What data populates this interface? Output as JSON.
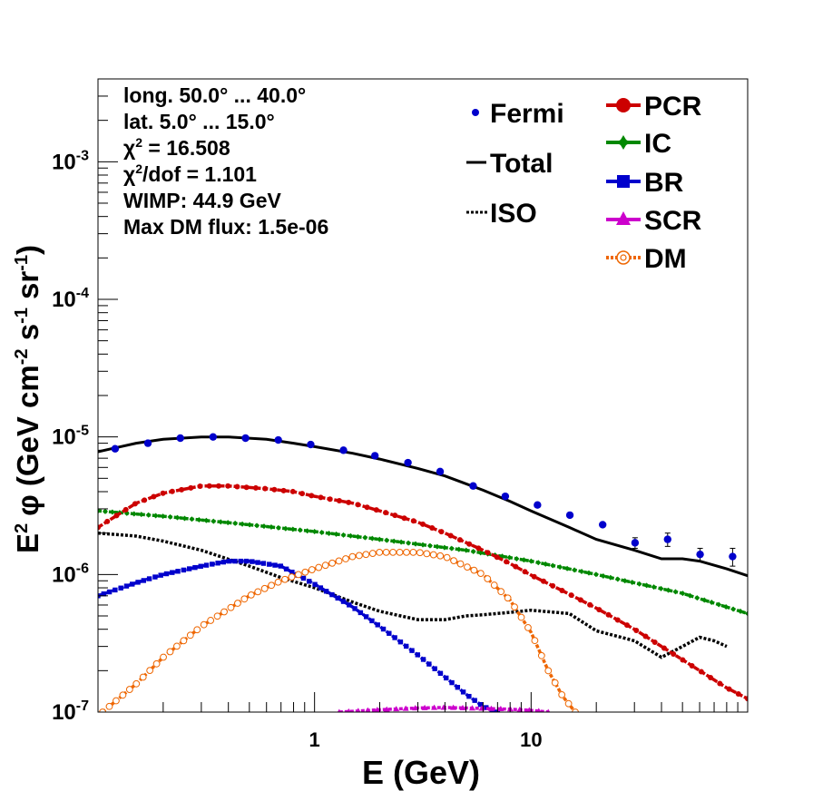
{
  "chart_data": {
    "type": "line",
    "xlabel": "E (GeV)",
    "ylabel_parts": {
      "e": "E",
      "e_exp": "2",
      "phi": "φ",
      "unit_open": " (GeV cm",
      "cm_exp": "-2",
      "s": " s",
      "s_exp": "-1",
      "sr": " sr",
      "sr_exp": "-1",
      "close": ")"
    },
    "x_scale": "log",
    "y_scale": "log",
    "xlim": [
      0.1,
      100
    ],
    "ylim": [
      1e-07,
      0.004
    ],
    "x_tick_labels": [
      {
        "value": 1,
        "label": "1"
      },
      {
        "value": 10,
        "label": "10"
      }
    ],
    "y_tick_labels": [
      {
        "value": 1e-07,
        "base": "10",
        "exp": "-7"
      },
      {
        "value": 1e-06,
        "base": "10",
        "exp": "-6"
      },
      {
        "value": 1e-05,
        "base": "10",
        "exp": "-5"
      },
      {
        "value": 0.0001,
        "base": "10",
        "exp": "-4"
      },
      {
        "value": 0.001,
        "base": "10",
        "exp": "-3"
      }
    ],
    "grid": false,
    "info": {
      "longitude": "long. 50.0° ... 40.0°",
      "latitude": "lat. 5.0° ... 15.0°",
      "chi2_sym": "χ",
      "chi2_exp": "2",
      "chi2_value": " = 16.508",
      "chi2dof_value": "/dof = 1.101",
      "wimp": "WIMP: 44.9 GeV",
      "max_dm": "Max DM flux: 1.5e-06"
    },
    "legend_left": [
      "Fermi",
      "Total",
      "ISO"
    ],
    "legend_right": [
      "PCR",
      "IC",
      "BR",
      "SCR",
      "DM"
    ],
    "series": [
      {
        "name": "Fermi",
        "color": "#0000cc",
        "style": "points",
        "x": [
          0.12,
          0.17,
          0.24,
          0.34,
          0.48,
          0.68,
          0.96,
          1.36,
          1.9,
          2.7,
          3.8,
          5.4,
          7.6,
          10.7,
          15.1,
          21.4,
          30.2,
          42.7,
          60.3,
          85.2
        ],
        "y": [
          8.2e-06,
          9e-06,
          9.8e-06,
          1e-05,
          9.8e-06,
          9.5e-06,
          8.8e-06,
          8e-06,
          7.3e-06,
          6.5e-06,
          5.6e-06,
          4.4e-06,
          3.7e-06,
          3.2e-06,
          2.7e-06,
          2.3e-06,
          1.7e-06,
          1.8e-06,
          1.4e-06,
          1.35e-06
        ],
        "err": [
          0,
          0,
          0,
          0,
          0,
          0,
          0,
          0,
          0,
          0,
          0,
          0,
          0,
          0,
          0,
          0,
          1.5e-07,
          2e-07,
          1.5e-07,
          2e-07
        ]
      },
      {
        "name": "Total",
        "color": "#000000",
        "style": "solid",
        "x": [
          0.1,
          0.15,
          0.2,
          0.3,
          0.4,
          0.6,
          0.8,
          1,
          1.5,
          2,
          3,
          4,
          6,
          8,
          10,
          15,
          20,
          30,
          40,
          50,
          60,
          80,
          100
        ],
        "y": [
          7.8e-06,
          9e-06,
          9.6e-06,
          1e-05,
          1e-05,
          9.6e-06,
          9e-06,
          8.5e-06,
          7.6e-06,
          6.9e-06,
          5.9e-06,
          5.2e-06,
          4.1e-06,
          3.4e-06,
          2.9e-06,
          2.2e-06,
          1.8e-06,
          1.5e-06,
          1.3e-06,
          1.3e-06,
          1.25e-06,
          1.1e-06,
          9.8e-07
        ]
      },
      {
        "name": "ISO",
        "color": "#000000",
        "style": "dotted",
        "x": [
          0.1,
          0.15,
          0.2,
          0.3,
          0.5,
          0.7,
          1,
          1.5,
          2,
          3,
          4,
          5,
          6,
          8,
          10,
          15,
          20,
          30,
          40,
          50,
          60,
          70,
          80
        ],
        "y": [
          2e-06,
          1.9e-06,
          1.75e-06,
          1.5e-06,
          1.15e-06,
          9.5e-07,
          8e-07,
          6.3e-07,
          5.4e-07,
          4.7e-07,
          4.7e-07,
          5e-07,
          5.1e-07,
          5.3e-07,
          5.5e-07,
          5.2e-07,
          3.9e-07,
          3.3e-07,
          2.5e-07,
          3e-07,
          3.5e-07,
          3.3e-07,
          3e-07
        ]
      },
      {
        "name": "PCR",
        "color": "#cc0000",
        "style": "marker-line",
        "x": [
          0.1,
          0.15,
          0.2,
          0.3,
          0.4,
          0.6,
          0.8,
          1,
          1.5,
          2,
          3,
          4,
          6,
          8,
          10,
          15,
          20,
          30,
          40,
          60,
          80,
          100
        ],
        "y": [
          2.2e-06,
          3.3e-06,
          3.9e-06,
          4.4e-06,
          4.4e-06,
          4.2e-06,
          4e-06,
          3.7e-06,
          3.3e-06,
          2.9e-06,
          2.4e-06,
          2e-06,
          1.5e-06,
          1.2e-06,
          9.9e-07,
          7.2e-07,
          5.7e-07,
          4e-07,
          3e-07,
          2e-07,
          1.5e-07,
          1.25e-07
        ]
      },
      {
        "name": "IC",
        "color": "#008800",
        "style": "marker-line",
        "x": [
          0.1,
          0.2,
          0.5,
          1,
          2,
          5,
          10,
          20,
          50,
          100
        ],
        "y": [
          2.9e-06,
          2.65e-06,
          2.3e-06,
          2.05e-06,
          1.8e-06,
          1.5e-06,
          1.25e-06,
          1e-06,
          7.3e-07,
          5.2e-07
        ]
      },
      {
        "name": "BR",
        "color": "#0000cc",
        "style": "marker-line",
        "x": [
          0.1,
          0.15,
          0.2,
          0.3,
          0.4,
          0.5,
          0.7,
          1,
          1.5,
          2,
          3,
          4,
          5,
          6,
          7
        ],
        "y": [
          7e-07,
          8.7e-07,
          1e-06,
          1.15e-06,
          1.25e-06,
          1.25e-06,
          1.15e-06,
          8.5e-07,
          5.8e-07,
          4.2e-07,
          2.6e-07,
          1.8e-07,
          1.35e-07,
          1.1e-07,
          1e-07
        ]
      },
      {
        "name": "SCR",
        "color": "#cc00cc",
        "style": "marker-line",
        "x": [
          1.3,
          2,
          3,
          4,
          5,
          8,
          10,
          12
        ],
        "y": [
          1e-07,
          1.04e-07,
          1.07e-07,
          1.08e-07,
          1.07e-07,
          1.05e-07,
          1.03e-07,
          1e-07
        ]
      },
      {
        "name": "DM",
        "color": "#ee6600",
        "style": "marker-line",
        "x": [
          0.105,
          0.15,
          0.2,
          0.3,
          0.5,
          0.7,
          1,
          1.5,
          2,
          3,
          4,
          6,
          8,
          10,
          12,
          14,
          16
        ],
        "y": [
          1e-07,
          1.6e-07,
          2.5e-07,
          4.2e-07,
          7e-07,
          9e-07,
          1.1e-06,
          1.35e-06,
          1.45e-06,
          1.45e-06,
          1.35e-06,
          1e-06,
          6.5e-07,
          3.8e-07,
          2e-07,
          1.3e-07,
          1e-07
        ]
      }
    ]
  }
}
